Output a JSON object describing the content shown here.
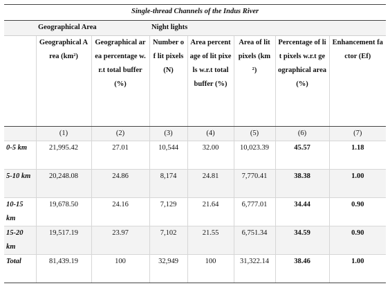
{
  "caption": "Single-thread Channels of the Indus River",
  "groups": {
    "geo": "Geographical Area",
    "night": "Night lights"
  },
  "headers": [
    "Geographical Area (km²)",
    "Geographical area percentage w.r.t total buffer (%)",
    "Number of lit pixels (N)",
    "Area percentage of lit pixels w.r.t total buffer (%)",
    "Area of lit pixels (km²)",
    "Percentage of lit pixels w.r.t geographical area (%)",
    "Enhancement factor (Ef)"
  ],
  "col_numbers": [
    "(1)",
    "(2)",
    "(3)",
    "(4)",
    "(5)",
    "(6)",
    "(7)"
  ],
  "rows": [
    {
      "label": "0-5 km",
      "cells": [
        "21,995.42",
        "27.01",
        "10,544",
        "32.00",
        "10,023.39",
        "45.57",
        "1.18"
      ]
    },
    {
      "label": "5-10 km",
      "cells": [
        "20,248.08",
        "24.86",
        "8,174",
        "24.81",
        "7,770.41",
        "38.38",
        "1.00"
      ]
    },
    {
      "label": "10-15 km",
      "cells": [
        "19,678.50",
        "24.16",
        "7,129",
        "21.64",
        "6,777.01",
        "34.44",
        "0.90"
      ]
    },
    {
      "label": "15-20 km",
      "cells": [
        "19,517.19",
        "23.97",
        "7,102",
        "21.55",
        "6,751.34",
        "34.59",
        "0.90"
      ]
    },
    {
      "label": "Total",
      "cells": [
        "81,439.19",
        "100",
        "32,949",
        "100",
        "31,322.14",
        "38.46",
        "1.00"
      ]
    }
  ]
}
